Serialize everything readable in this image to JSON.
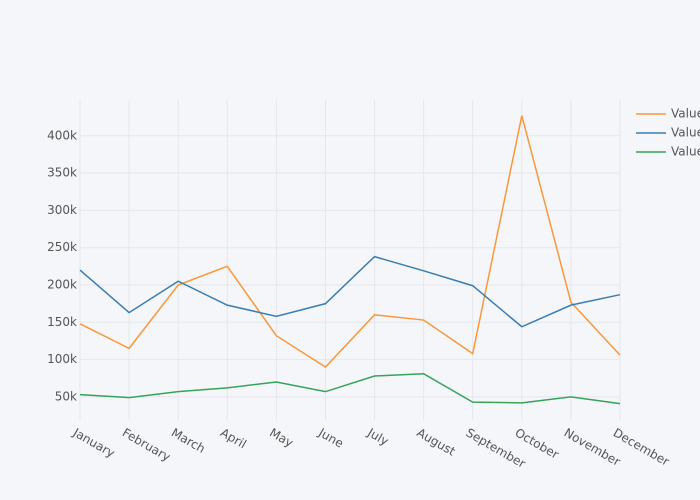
{
  "chart_data": {
    "type": "line",
    "categories": [
      "January",
      "February",
      "March",
      "April",
      "May",
      "June",
      "July",
      "August",
      "September",
      "October",
      "November",
      "December"
    ],
    "series": [
      {
        "name": "Value",
        "color": "#f8983a",
        "values": [
          148000,
          115000,
          200000,
          225000,
          132000,
          90000,
          160000,
          153000,
          108000,
          427000,
          177000,
          106000
        ]
      },
      {
        "name": "Value",
        "color": "#3a7db4",
        "values": [
          220000,
          163000,
          205000,
          173000,
          158000,
          175000,
          238000,
          219000,
          199000,
          144000,
          173000,
          187000
        ]
      },
      {
        "name": "Value",
        "color": "#36a35a",
        "values": [
          53000,
          49000,
          57000,
          62000,
          70000,
          57000,
          78000,
          81000,
          43000,
          42000,
          50000,
          41000
        ]
      }
    ],
    "ylim": [
      19000,
      448000
    ],
    "yticks": [
      {
        "value": 50000,
        "label": "50k"
      },
      {
        "value": 100000,
        "label": "100k"
      },
      {
        "value": 150000,
        "label": "150k"
      },
      {
        "value": 200000,
        "label": "200k"
      },
      {
        "value": 250000,
        "label": "250k"
      },
      {
        "value": 300000,
        "label": "300k"
      },
      {
        "value": 350000,
        "label": "350k"
      },
      {
        "value": 400000,
        "label": "400k"
      }
    ],
    "grid": true
  }
}
